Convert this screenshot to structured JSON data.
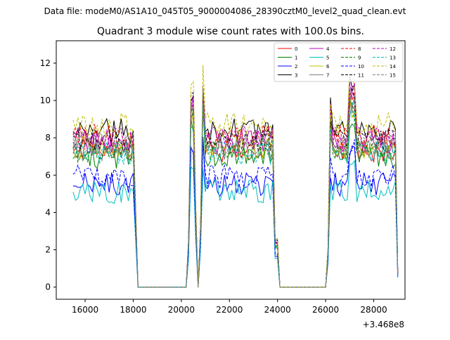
{
  "chart_data": {
    "type": "line",
    "suptitle": "Data file: modeM0/AS1A10_045T05_9000004086_28390cztM0_level2_quad_clean.evt",
    "title": "Quadrant 3 module wise count rates with 100.0s bins.",
    "xlabel": "",
    "ylabel": "",
    "x_offset_label": "+3.468e8",
    "xlim": [
      14800,
      29300
    ],
    "ylim": [
      -0.65,
      13.2
    ],
    "xticks": [
      16000,
      18000,
      20000,
      22000,
      24000,
      26000,
      28000
    ],
    "xtick_labels": [
      "16000",
      "18000",
      "20000",
      "22000",
      "24000",
      "26000",
      "28000"
    ],
    "yticks": [
      0,
      2,
      4,
      6,
      8,
      10,
      12
    ],
    "ytick_labels": [
      "0",
      "2",
      "4",
      "6",
      "8",
      "10",
      "12"
    ],
    "legend_position": "upper-right",
    "x_start": 15500,
    "x_step": 100,
    "n_points": 136,
    "segments": [
      {
        "from": 15500,
        "to": 18000
      },
      {
        "to": 18100,
        "factor": 0.5
      },
      {
        "to": 20200,
        "zero": true
      },
      {
        "to": 20300,
        "factor": 0.3
      },
      {
        "to": 20500,
        "peak": 1.25
      },
      {
        "to": 20600,
        "factor": 0.5
      },
      {
        "to": 20700,
        "zero": true
      },
      {
        "to": 20800,
        "factor": 0.4
      },
      {
        "to": 20900,
        "peak": 1.35
      },
      {
        "to": 23800
      },
      {
        "to": 24000,
        "factor": 0.3
      },
      {
        "to": 26000,
        "zero": true
      },
      {
        "to": 26100,
        "factor": 0.25
      },
      {
        "to": 26200,
        "peak": 1.15
      },
      {
        "to": 26900
      },
      {
        "to": 27200,
        "peak": 1.3
      },
      {
        "to": 28900
      },
      {
        "to": 29000,
        "factor": 0.1
      }
    ],
    "series": [
      {
        "name": "0",
        "color": "#ff0000",
        "style": "solid",
        "level": 7.3
      },
      {
        "name": "1",
        "color": "#008000",
        "style": "solid",
        "level": 7.0
      },
      {
        "name": "2",
        "color": "#0000ff",
        "style": "solid",
        "level": 5.5
      },
      {
        "name": "3",
        "color": "#000000",
        "style": "solid",
        "level": 8.4
      },
      {
        "name": "4",
        "color": "#bf00bf",
        "style": "solid",
        "level": 7.8
      },
      {
        "name": "5",
        "color": "#00bfbf",
        "style": "solid",
        "level": 5.1
      },
      {
        "name": "6",
        "color": "#bfbf00",
        "style": "solid",
        "level": 7.5
      },
      {
        "name": "7",
        "color": "#808080",
        "style": "solid",
        "level": 7.4
      },
      {
        "name": "8",
        "color": "#ff0000",
        "style": "dashed",
        "level": 8.1
      },
      {
        "name": "9",
        "color": "#008000",
        "style": "dashed",
        "level": 7.3
      },
      {
        "name": "10",
        "color": "#0000ff",
        "style": "dashed",
        "level": 5.9
      },
      {
        "name": "11",
        "color": "#000000",
        "style": "dashed",
        "level": 7.9
      },
      {
        "name": "12",
        "color": "#bf00bf",
        "style": "dashed",
        "level": 8.0
      },
      {
        "name": "13",
        "color": "#00bfbf",
        "style": "dashed",
        "level": 7.2
      },
      {
        "name": "14",
        "color": "#bfbf00",
        "style": "dashed",
        "level": 8.7
      },
      {
        "name": "15",
        "color": "#808080",
        "style": "dashed",
        "level": 7.7
      }
    ]
  }
}
